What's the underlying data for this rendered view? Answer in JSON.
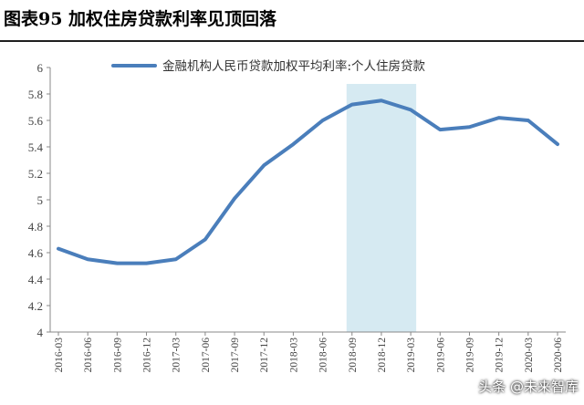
{
  "header": {
    "title": "图表95  加权住房贷款利率见顶回落"
  },
  "watermark": "头条 @未来智库",
  "chart_data": {
    "type": "line",
    "title": "",
    "xlabel": "",
    "ylabel": "",
    "ylim": [
      4,
      6
    ],
    "yticks": [
      4,
      4.2,
      4.4,
      4.6,
      4.8,
      5,
      5.2,
      5.4,
      5.6,
      5.8,
      6
    ],
    "ytick_labels": [
      "4",
      "4.2",
      "4.4",
      "4.6",
      "4.8",
      "5",
      "5.2",
      "5.4",
      "5.6",
      "5.8",
      "6"
    ],
    "categories": [
      "2016-03",
      "2016-06",
      "2016-09",
      "2016-12",
      "2017-03",
      "2017-06",
      "2017-09",
      "2017-12",
      "2018-03",
      "2018-06",
      "2018-09",
      "2018-12",
      "2019-03",
      "2019-06",
      "2019-09",
      "2019-12",
      "2020-03",
      "2020-06"
    ],
    "xtick_labels": [
      "2016-03",
      "2016-06",
      "2016-09",
      "2016-12",
      "2017-03",
      "2017-06",
      "2017-09",
      "2017-12",
      "2018-03",
      "2018-06",
      "2018-09",
      "2018-12",
      "2019-03",
      "2019-06",
      "2019-09",
      "2019-12",
      "2020-03",
      "2020-06"
    ],
    "series": [
      {
        "name": "金融机构人民币贷款加权平均利率:个人住房贷款",
        "color": "#4a7ebb",
        "values": [
          4.63,
          4.55,
          4.52,
          4.52,
          4.55,
          4.7,
          5.01,
          5.26,
          5.42,
          5.6,
          5.72,
          5.75,
          5.68,
          5.53,
          5.55,
          5.62,
          5.6,
          5.42
        ]
      }
    ],
    "shaded_region": {
      "from": "2018-09",
      "to": "2019-03",
      "color": "#d6eaf2"
    },
    "grid": false,
    "legend_position": "top-center"
  }
}
